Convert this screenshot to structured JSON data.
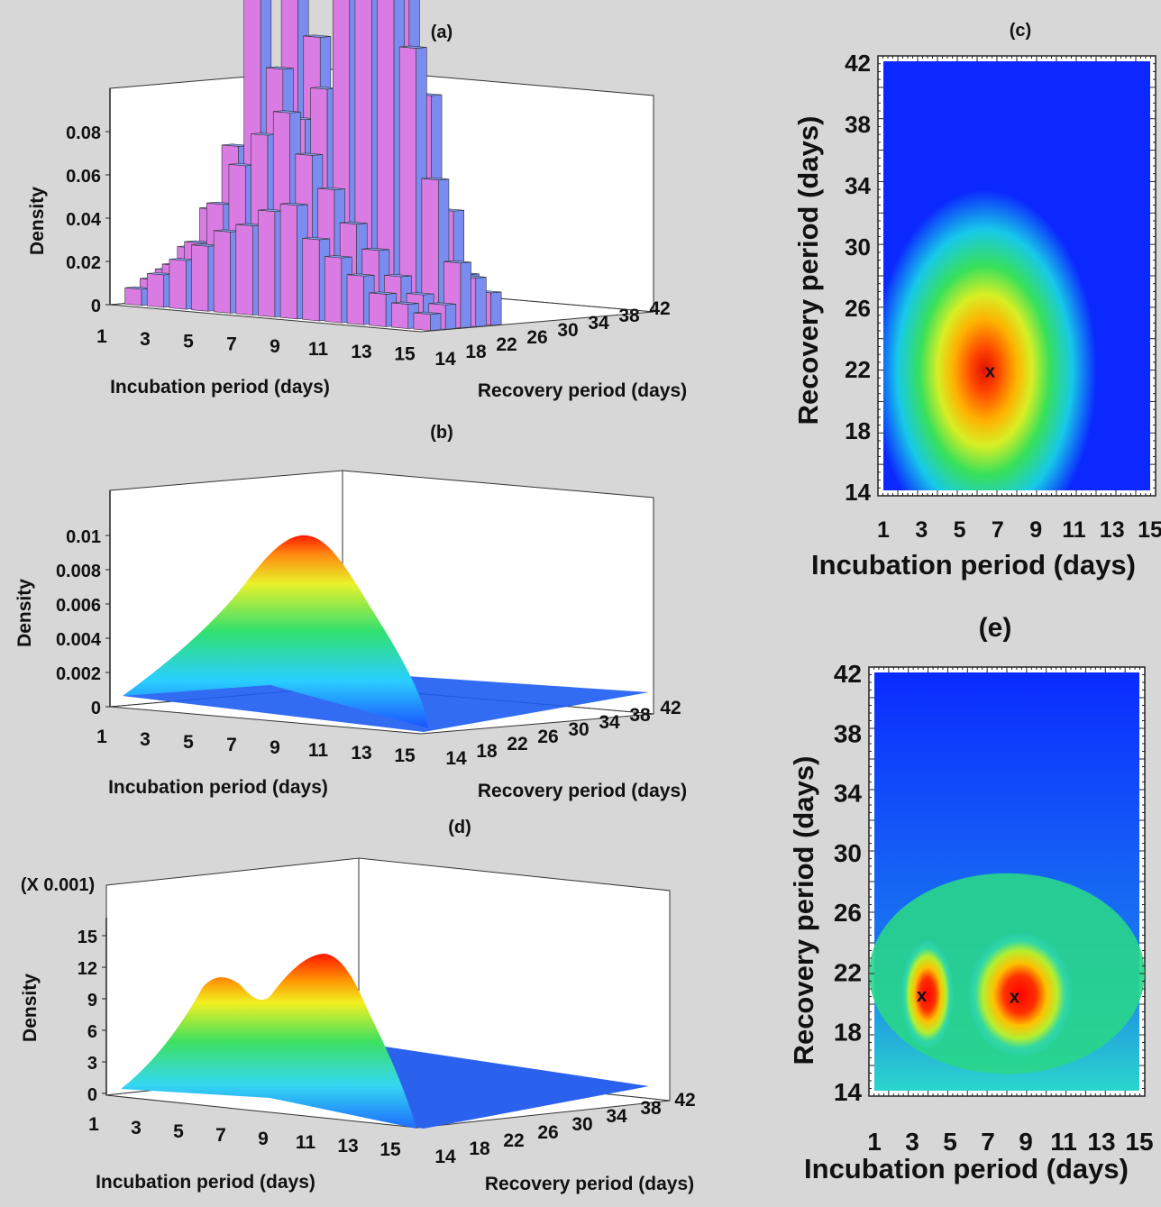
{
  "chart_data": [
    {
      "id": "a",
      "panel_label": "(a)",
      "type": "bar3d",
      "zlabel": "Density",
      "xlabel": "Incubation period (days)",
      "ylabel": "Recovery period (days)",
      "z_ticks": [
        "0",
        "0.02",
        "0.04",
        "0.06",
        "0.08"
      ],
      "x_ticks": [
        "1",
        "3",
        "5",
        "7",
        "9",
        "11",
        "13",
        "15"
      ],
      "y_ticks": [
        "14",
        "18",
        "22",
        "26",
        "30",
        "34",
        "38",
        "42"
      ],
      "zlim": [
        0,
        0.08
      ],
      "colors": {
        "bar_side": "#d97be3",
        "bar_top": "#8aa3ff",
        "bar_front": "#7a8cf0"
      },
      "bars_sample": [
        {
          "x": 6,
          "y": 18,
          "z": 0.062
        },
        {
          "x": 11,
          "y": 18,
          "z": 0.06
        },
        {
          "x": 12,
          "y": 18,
          "z": 0.056
        },
        {
          "x": 10,
          "y": 18,
          "z": 0.04
        },
        {
          "x": 7,
          "y": 18,
          "z": 0.043
        },
        {
          "x": 8,
          "y": 18,
          "z": 0.034
        },
        {
          "x": 13,
          "y": 18,
          "z": 0.04
        },
        {
          "x": 5,
          "y": 18,
          "z": 0.022
        }
      ]
    },
    {
      "id": "b",
      "panel_label": "(b)",
      "type": "surface3d",
      "zlabel": "Density",
      "xlabel": "Incubation period (days)",
      "ylabel": "Recovery period (days)",
      "z_ticks": [
        "0",
        "0.002",
        "0.004",
        "0.006",
        "0.008",
        "0.01"
      ],
      "x_ticks": [
        "1",
        "3",
        "5",
        "7",
        "9",
        "11",
        "13",
        "15"
      ],
      "y_ticks": [
        "14",
        "18",
        "22",
        "26",
        "30",
        "34",
        "38",
        "42"
      ],
      "zlim": [
        0,
        0.01
      ],
      "peak": {
        "x": 6.6,
        "y": 21.8,
        "z": 0.0095
      }
    },
    {
      "id": "c",
      "panel_label": "(c)",
      "type": "heatmap",
      "xlabel": "Incubation period (days)",
      "ylabel": "Recovery period (days)",
      "x_ticks": [
        "1",
        "3",
        "5",
        "7",
        "9",
        "11",
        "13",
        "15"
      ],
      "y_ticks": [
        "14",
        "18",
        "22",
        "26",
        "30",
        "34",
        "38",
        "42"
      ],
      "xlim": [
        1,
        15
      ],
      "ylim": [
        14,
        42
      ],
      "marker": "x",
      "modes": [
        {
          "x": 6.6,
          "y": 21.8
        }
      ]
    },
    {
      "id": "d",
      "panel_label": "(d)",
      "type": "surface3d",
      "scale_note": "(X 0.001)",
      "zlabel": "Density",
      "xlabel": "Incubation period (days)",
      "ylabel": "Recovery period (days)",
      "z_ticks": [
        "0",
        "3",
        "6",
        "9",
        "12",
        "15"
      ],
      "x_ticks": [
        "1",
        "3",
        "5",
        "7",
        "9",
        "11",
        "13",
        "15"
      ],
      "y_ticks": [
        "14",
        "18",
        "22",
        "26",
        "30",
        "34",
        "38",
        "42"
      ],
      "zlim": [
        0,
        15
      ],
      "peaks": [
        {
          "x": 3.5,
          "y": 20.5,
          "z": 10.5
        },
        {
          "x": 8.5,
          "y": 20.3,
          "z": 13.5
        }
      ]
    },
    {
      "id": "e",
      "panel_label": "(e)",
      "type": "heatmap",
      "xlabel": "Incubation period (days)",
      "ylabel": "Recovery period (days)",
      "x_ticks": [
        "1",
        "3",
        "5",
        "7",
        "9",
        "11",
        "13",
        "15"
      ],
      "y_ticks": [
        "14",
        "18",
        "22",
        "26",
        "30",
        "34",
        "38",
        "42"
      ],
      "xlim": [
        1,
        15
      ],
      "ylim": [
        14,
        42
      ],
      "marker": "x",
      "modes": [
        {
          "x": 3.5,
          "y": 20.4
        },
        {
          "x": 8.4,
          "y": 20.3
        }
      ]
    }
  ]
}
